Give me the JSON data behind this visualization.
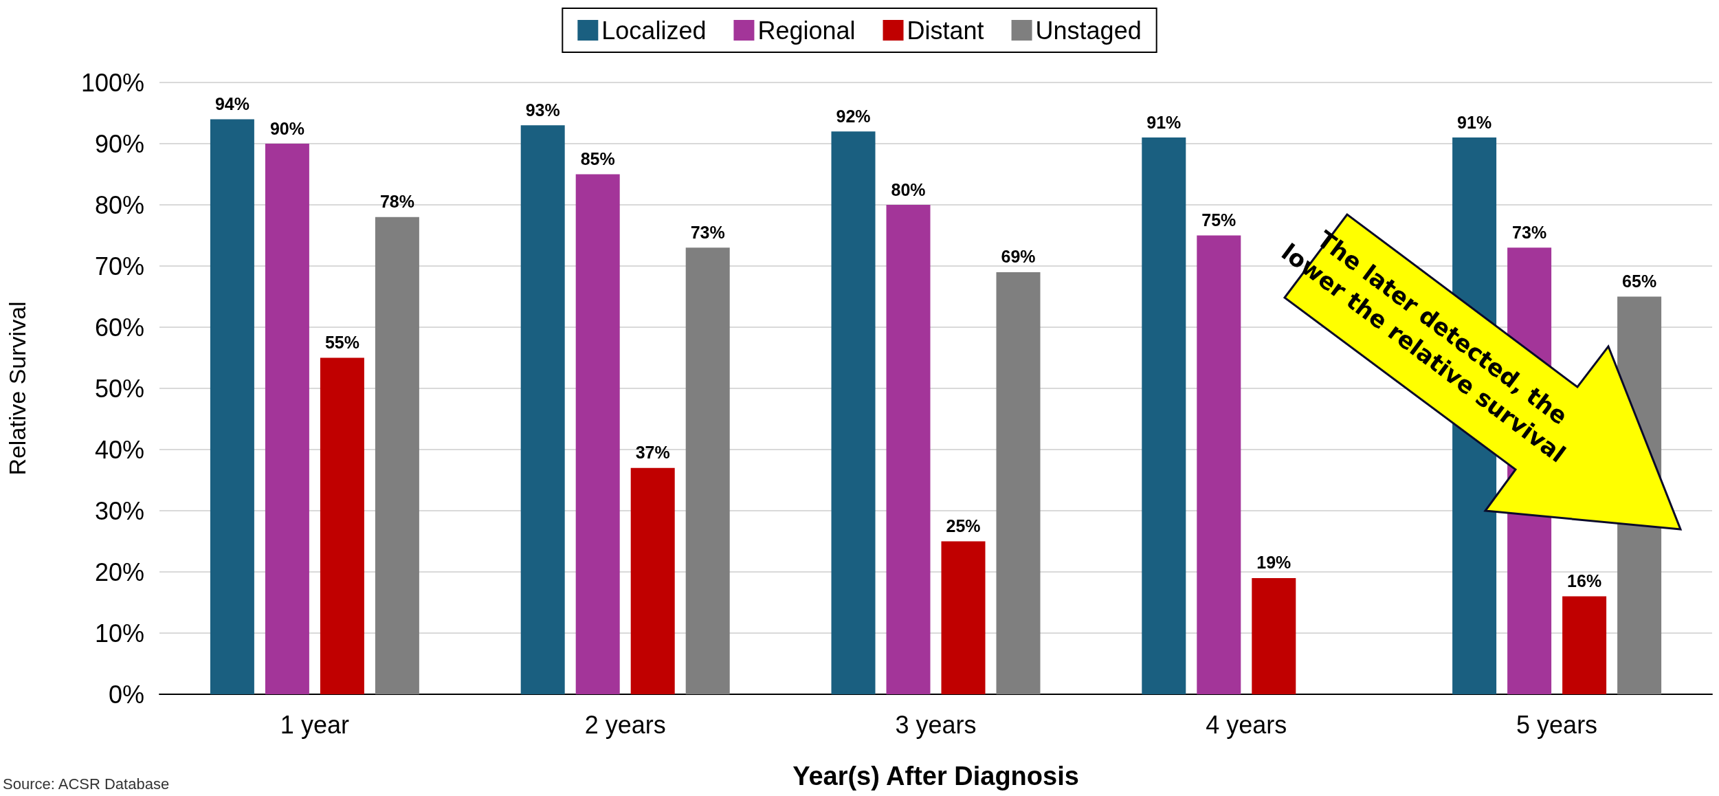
{
  "chart_data": {
    "type": "bar",
    "categories": [
      "1 year",
      "2 years",
      "3 years",
      "4 years",
      "5 years"
    ],
    "series": [
      {
        "name": "Localized",
        "color": "#1a5f80",
        "values": [
          94,
          93,
          92,
          91,
          91
        ],
        "value_labels": [
          "94%",
          "93%",
          "92%",
          "91%",
          "91%"
        ]
      },
      {
        "name": "Regional",
        "color": "#a33599",
        "values": [
          90,
          85,
          80,
          75,
          73
        ],
        "value_labels": [
          "90%",
          "85%",
          "80%",
          "75%",
          "73%"
        ]
      },
      {
        "name": "Distant",
        "color": "#c00000",
        "values": [
          55,
          37,
          25,
          19,
          16
        ],
        "value_labels": [
          "55%",
          "37%",
          "25%",
          "19%",
          "16%"
        ]
      },
      {
        "name": "Unstaged",
        "color": "#7f7f7f",
        "values": [
          78,
          73,
          69,
          null,
          65
        ],
        "value_labels": [
          "78%",
          "73%",
          "69%",
          null,
          "65%"
        ]
      }
    ],
    "xlabel": "Year(s) After Diagnosis",
    "ylabel": "Relative Survival",
    "ylim": [
      0,
      100
    ],
    "yticks": [
      {
        "value": 0,
        "label": "0%"
      },
      {
        "value": 10,
        "label": "10%"
      },
      {
        "value": 20,
        "label": "20%"
      },
      {
        "value": 30,
        "label": "30%"
      },
      {
        "value": 40,
        "label": "40%"
      },
      {
        "value": 50,
        "label": "50%"
      },
      {
        "value": 60,
        "label": "60%"
      },
      {
        "value": 70,
        "label": "70%"
      },
      {
        "value": 80,
        "label": "80%"
      },
      {
        "value": 90,
        "label": "90%"
      },
      {
        "value": 100,
        "label": "100%"
      }
    ],
    "grid": "y",
    "legend": "top",
    "annotations": [
      "The later detected, the\nlower the relative survival",
      "Source: ACSR Database"
    ]
  }
}
